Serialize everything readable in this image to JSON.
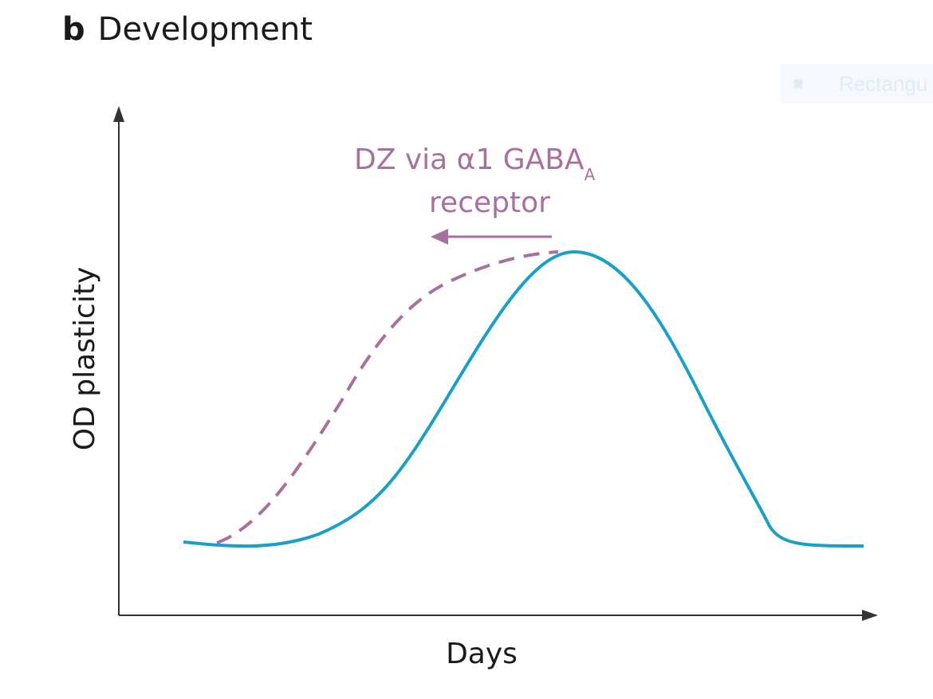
{
  "panel": {
    "letter": "b",
    "title": "Development"
  },
  "ghost_chip": {
    "label": "Rectangu"
  },
  "axes": {
    "x_label": "Days",
    "y_label": "OD plasticity"
  },
  "annotation": {
    "line1": "DZ via α1 GABA",
    "subscript": "A",
    "line2": "receptor"
  },
  "colors": {
    "axis": "#333333",
    "normal_curve": "#1aa0c8",
    "shifted_curve": "#a8709f",
    "annotation": "#a8709f",
    "text": "#1a1a1a"
  }
}
